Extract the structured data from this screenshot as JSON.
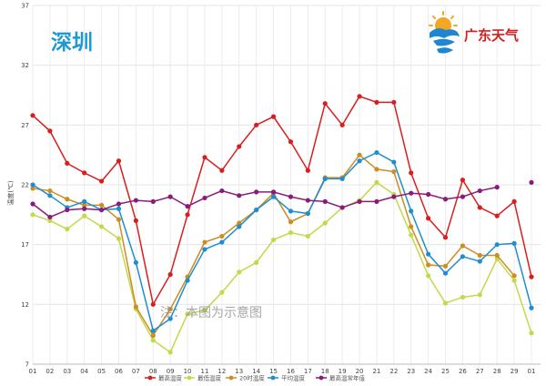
{
  "chart_data": {
    "type": "line",
    "title": "深圳",
    "brand": "广东天气",
    "note": "注：本图为示意图",
    "ylabel": "温度(℃)",
    "xlabel": "",
    "ylim": [
      7,
      37
    ],
    "yticks": [
      7,
      12,
      17,
      22,
      27,
      32,
      37
    ],
    "grid": true,
    "legend_position": "bottom",
    "categories": [
      "01",
      "02",
      "03",
      "04",
      "05",
      "06",
      "07",
      "08",
      "09",
      "10",
      "11",
      "12",
      "13",
      "14",
      "15",
      "16",
      "17",
      "18",
      "19",
      "20",
      "21",
      "22",
      "23",
      "24",
      "25",
      "26",
      "27",
      "28",
      "29",
      "01"
    ],
    "series": [
      {
        "name": "最高温度",
        "color": "#d81e1e",
        "values": [
          27.8,
          26.5,
          23.8,
          23.0,
          22.3,
          24.0,
          19.0,
          12.0,
          14.5,
          19.5,
          24.3,
          23.2,
          25.2,
          27.0,
          27.7,
          25.6,
          23.2,
          28.8,
          27.0,
          29.4,
          28.9,
          28.9,
          23.0,
          19.2,
          17.6,
          22.4,
          20.1,
          19.4,
          20.6,
          14.3
        ]
      },
      {
        "name": "最低温度",
        "color": "#c2d94a",
        "values": [
          19.5,
          19.0,
          18.3,
          19.4,
          18.5,
          17.5,
          11.6,
          9.0,
          8.0,
          11.2,
          11.5,
          13.0,
          14.7,
          15.5,
          17.4,
          18.0,
          17.7,
          18.8,
          20.1,
          20.7,
          22.2,
          21.2,
          17.8,
          14.4,
          12.1,
          12.6,
          12.8,
          15.8,
          14.0,
          9.6
        ]
      },
      {
        "name": "20时温度",
        "color": "#cc8d22",
        "values": [
          21.7,
          21.5,
          20.8,
          20.3,
          20.3,
          19.1,
          11.8,
          9.4,
          11.6,
          14.3,
          17.2,
          17.7,
          18.8,
          19.9,
          21.3,
          18.9,
          19.6,
          22.6,
          22.6,
          24.5,
          23.3,
          23.1,
          18.5,
          15.3,
          15.2,
          16.9,
          16.1,
          16.1,
          14.4,
          null
        ]
      },
      {
        "name": "平均温度",
        "color": "#1e8ed0",
        "values": [
          22.0,
          21.1,
          20.1,
          20.6,
          19.9,
          20.0,
          15.5,
          9.8,
          10.8,
          14.0,
          16.6,
          17.2,
          18.5,
          19.9,
          21.0,
          19.8,
          19.6,
          22.5,
          22.5,
          24.0,
          24.7,
          23.9,
          19.8,
          16.2,
          14.6,
          16.0,
          15.6,
          17.0,
          17.1,
          11.7
        ]
      },
      {
        "name": "最高温常年值",
        "color": "#8b1b7a",
        "values": [
          20.4,
          19.3,
          19.9,
          20.0,
          19.9,
          20.4,
          20.7,
          20.6,
          21.0,
          20.2,
          20.9,
          21.5,
          21.1,
          21.4,
          21.4,
          21.0,
          20.7,
          20.6,
          20.1,
          20.6,
          20.6,
          21.0,
          21.3,
          21.2,
          20.8,
          21.0,
          21.5,
          21.8,
          null,
          22.2
        ]
      }
    ]
  }
}
